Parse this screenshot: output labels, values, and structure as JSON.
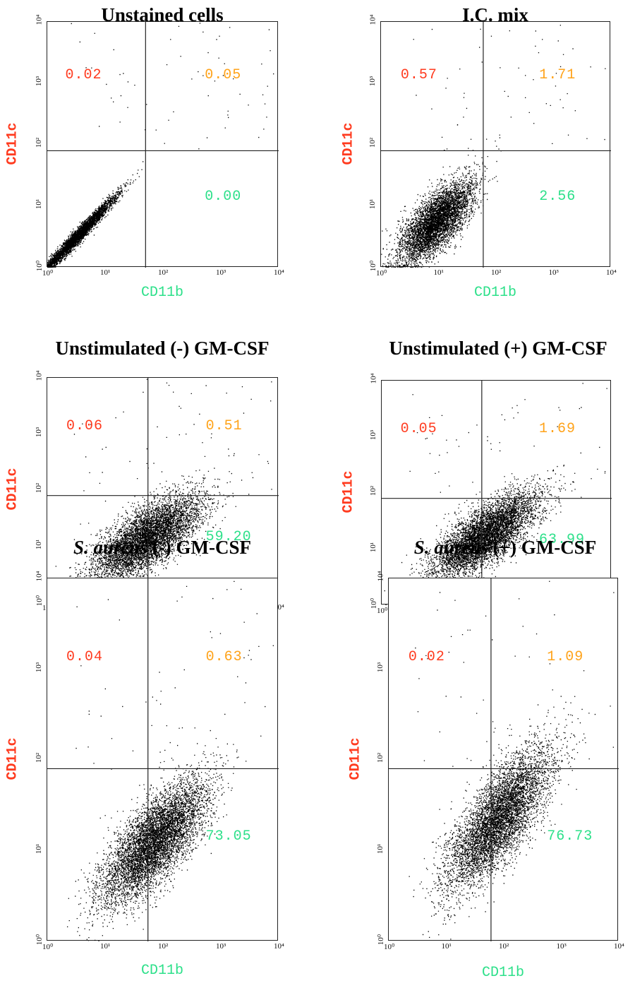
{
  "colors": {
    "upper_left": "#ff3b1f",
    "upper_right": "#ffa31a",
    "lower_right": "#2de08a",
    "y_label": "#ff3b1f",
    "x_label": "#2de08a",
    "dots": "#000000"
  },
  "axis_ticks": {
    "x": [
      "10⁰",
      "10¹",
      "10²",
      "10³",
      "10⁴"
    ],
    "y": [
      "10⁰",
      "10¹",
      "10²",
      "10³",
      "10⁴"
    ]
  },
  "chart_data": [
    {
      "type": "scatter",
      "title": "Unstained cells",
      "title_italic": "",
      "xlabel": "CD11b",
      "ylabel": "CD11c",
      "xscale": "log",
      "yscale": "log",
      "xlim": [
        1,
        10000
      ],
      "ylim": [
        1,
        10000
      ],
      "gate": {
        "x": 50,
        "y": 80
      },
      "quadrants": {
        "upper_left": "0.02",
        "upper_right": "0.05",
        "lower_right": "0.00"
      },
      "population": {
        "mode": "diagonal",
        "cx": 0.5,
        "cy": 0.5,
        "sx": 0.34,
        "sy": 0.34,
        "rho": 0.985,
        "n": 4200
      }
    },
    {
      "type": "scatter",
      "title": "I.C. mix",
      "title_italic": "",
      "xlabel": "CD11b",
      "ylabel": "CD11c",
      "xscale": "log",
      "yscale": "log",
      "xlim": [
        1,
        10000
      ],
      "ylim": [
        1,
        10000
      ],
      "gate": {
        "x": 60,
        "y": 80
      },
      "quadrants": {
        "upper_left": "0.57",
        "upper_right": "1.71",
        "lower_right": "2.56"
      },
      "population": {
        "mode": "blob",
        "cx": 0.95,
        "cy": 0.75,
        "sx": 0.32,
        "sy": 0.33,
        "rho": 0.72,
        "n": 5200
      }
    },
    {
      "type": "scatter",
      "title": "Unstimulated (-) GM-CSF",
      "title_italic": "",
      "xlabel": "CD11b",
      "ylabel": "CD11c",
      "xscale": "log",
      "yscale": "log",
      "xlim": [
        1,
        10000
      ],
      "ylim": [
        1,
        10000
      ],
      "gate": {
        "x": 55,
        "y": 80
      },
      "quadrants": {
        "upper_left": "0.06",
        "upper_right": "0.51",
        "lower_right": "59.20"
      },
      "population": {
        "mode": "blob",
        "cx": 1.7,
        "cy": 1.15,
        "sx": 0.48,
        "sy": 0.38,
        "rho": 0.72,
        "n": 6000
      }
    },
    {
      "type": "scatter",
      "title": "Unstimulated (+) GM-CSF",
      "title_italic": "",
      "xlabel": "CD11b",
      "ylabel": "CD11c",
      "xscale": "log",
      "yscale": "log",
      "xlim": [
        1,
        10000
      ],
      "ylim": [
        1,
        10000
      ],
      "gate": {
        "x": 55,
        "y": 80
      },
      "quadrants": {
        "upper_left": "0.05",
        "upper_right": "1.69",
        "lower_right": "63.99"
      },
      "population": {
        "mode": "blob",
        "cx": 1.8,
        "cy": 1.25,
        "sx": 0.45,
        "sy": 0.38,
        "rho": 0.75,
        "n": 6000
      }
    },
    {
      "type": "scatter",
      "title": "(-) GM-CSF",
      "title_italic": "S. aureus",
      "xlabel": "CD11b",
      "ylabel": "CD11c",
      "xscale": "log",
      "yscale": "log",
      "xlim": [
        1,
        10000
      ],
      "ylim": [
        1,
        10000
      ],
      "gate": {
        "x": 55,
        "y": 80
      },
      "quadrants": {
        "upper_left": "0.04",
        "upper_right": "0.63",
        "lower_right": "73.05"
      },
      "population": {
        "mode": "blob",
        "cx": 1.85,
        "cy": 1.1,
        "sx": 0.45,
        "sy": 0.34,
        "rho": 0.74,
        "n": 6500
      }
    },
    {
      "type": "scatter",
      "title": "(+) GM-CSF",
      "title_italic": "S. aureus",
      "xlabel": "CD11b",
      "ylabel": "CD11c",
      "xscale": "log",
      "yscale": "log",
      "xlim": [
        1,
        10000
      ],
      "ylim": [
        1,
        10000
      ],
      "gate": {
        "x": 60,
        "y": 80
      },
      "quadrants": {
        "upper_left": "0.02",
        "upper_right": "1.09",
        "lower_right": "76.73"
      },
      "population": {
        "mode": "blob",
        "cx": 1.9,
        "cy": 1.35,
        "sx": 0.45,
        "sy": 0.38,
        "rho": 0.76,
        "n": 6000
      }
    }
  ]
}
